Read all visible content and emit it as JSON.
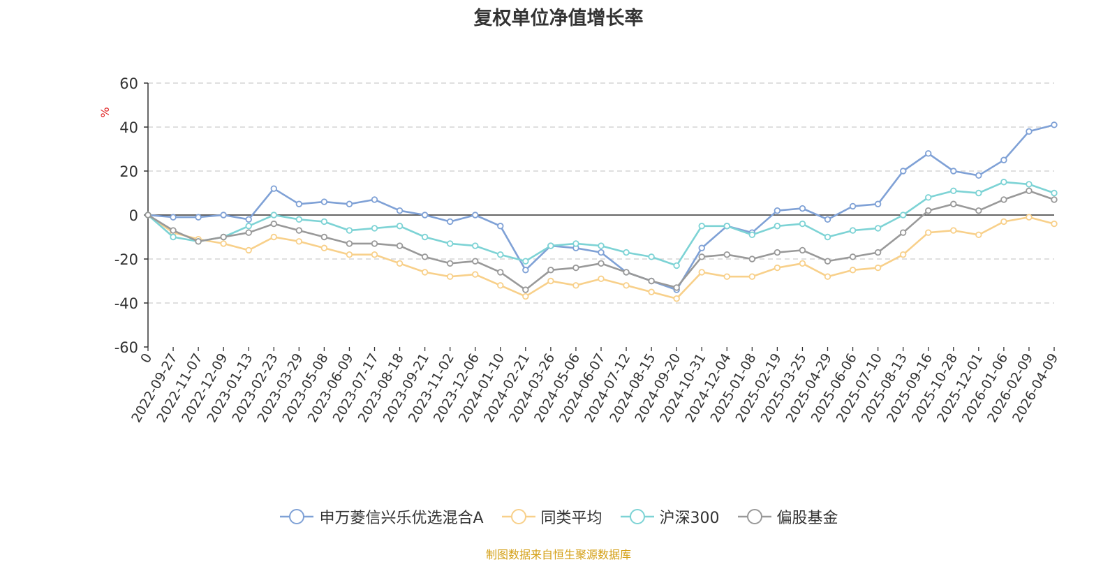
{
  "chart_data": {
    "type": "line",
    "title": "复权单位净值增长率",
    "ylabel": "%",
    "xlabel": "",
    "ylim": [
      -60,
      60
    ],
    "yticks": [
      60,
      40,
      20,
      0,
      -20,
      -40,
      -60
    ],
    "grid": true,
    "legend_position": "bottom",
    "x_labels": [
      "0",
      "2022-09-27",
      "2022-11-07",
      "2022-12-09",
      "2023-01-13",
      "2023-02-23",
      "2023-03-29",
      "2023-05-08",
      "2023-06-09",
      "2023-07-17",
      "2023-08-18",
      "2023-09-21",
      "2023-11-02",
      "2023-12-06",
      "2024-01-10",
      "2024-02-21",
      "2024-03-26",
      "2024-05-06",
      "2024-06-07",
      "2024-07-12",
      "2024-08-15",
      "2024-09-20",
      "2024-10-31",
      "2024-12-04",
      "2025-01-08",
      "2025-02-19",
      "2025-03-25",
      "2025-04-29",
      "2025-06-06",
      "2025-07-10",
      "2025-08-13",
      "2025-09-16",
      "2025-10-28",
      "2025-12-01",
      "2026-01-06",
      "2026-02-09",
      "2026-04-09"
    ],
    "series": [
      {
        "name": "申万菱信兴乐优选混合A",
        "color": "#7fa1d6",
        "values": [
          0,
          -1,
          -1,
          0,
          -2,
          12,
          5,
          6,
          5,
          7,
          2,
          0,
          -3,
          0,
          -5,
          -25,
          -14,
          -15,
          -17,
          -26,
          -30,
          -34,
          -15,
          -5,
          -8,
          2,
          3,
          -2,
          4,
          5,
          20,
          28,
          20,
          18,
          25,
          38,
          41
        ]
      },
      {
        "name": "同类平均",
        "color": "#f8d08a",
        "values": [
          0,
          -8,
          -11,
          -13,
          -16,
          -10,
          -12,
          -15,
          -18,
          -18,
          -22,
          -26,
          -28,
          -27,
          -32,
          -37,
          -30,
          -32,
          -29,
          -32,
          -35,
          -38,
          -26,
          -28,
          -28,
          -24,
          -22,
          -28,
          -25,
          -24,
          -18,
          -8,
          -7,
          -9,
          -3,
          -1,
          -4
        ]
      },
      {
        "name": "沪深300",
        "color": "#7dd3d5",
        "values": [
          0,
          -10,
          -12,
          -10,
          -5,
          0,
          -2,
          -3,
          -7,
          -6,
          -5,
          -10,
          -13,
          -14,
          -18,
          -21,
          -14,
          -13,
          -14,
          -17,
          -19,
          -23,
          -5,
          -5,
          -9,
          -5,
          -4,
          -10,
          -7,
          -6,
          0,
          8,
          11,
          10,
          15,
          14,
          10
        ]
      },
      {
        "name": "偏股基金",
        "color": "#999999",
        "values": [
          0,
          -7,
          -12,
          -10,
          -8,
          -4,
          -7,
          -10,
          -13,
          -13,
          -14,
          -19,
          -22,
          -21,
          -26,
          -34,
          -25,
          -24,
          -22,
          -26,
          -30,
          -33,
          -19,
          -18,
          -20,
          -17,
          -16,
          -21,
          -19,
          -17,
          -8,
          2,
          5,
          2,
          7,
          11,
          7
        ]
      }
    ]
  },
  "source_note": "制图数据来自恒生聚源数据库"
}
